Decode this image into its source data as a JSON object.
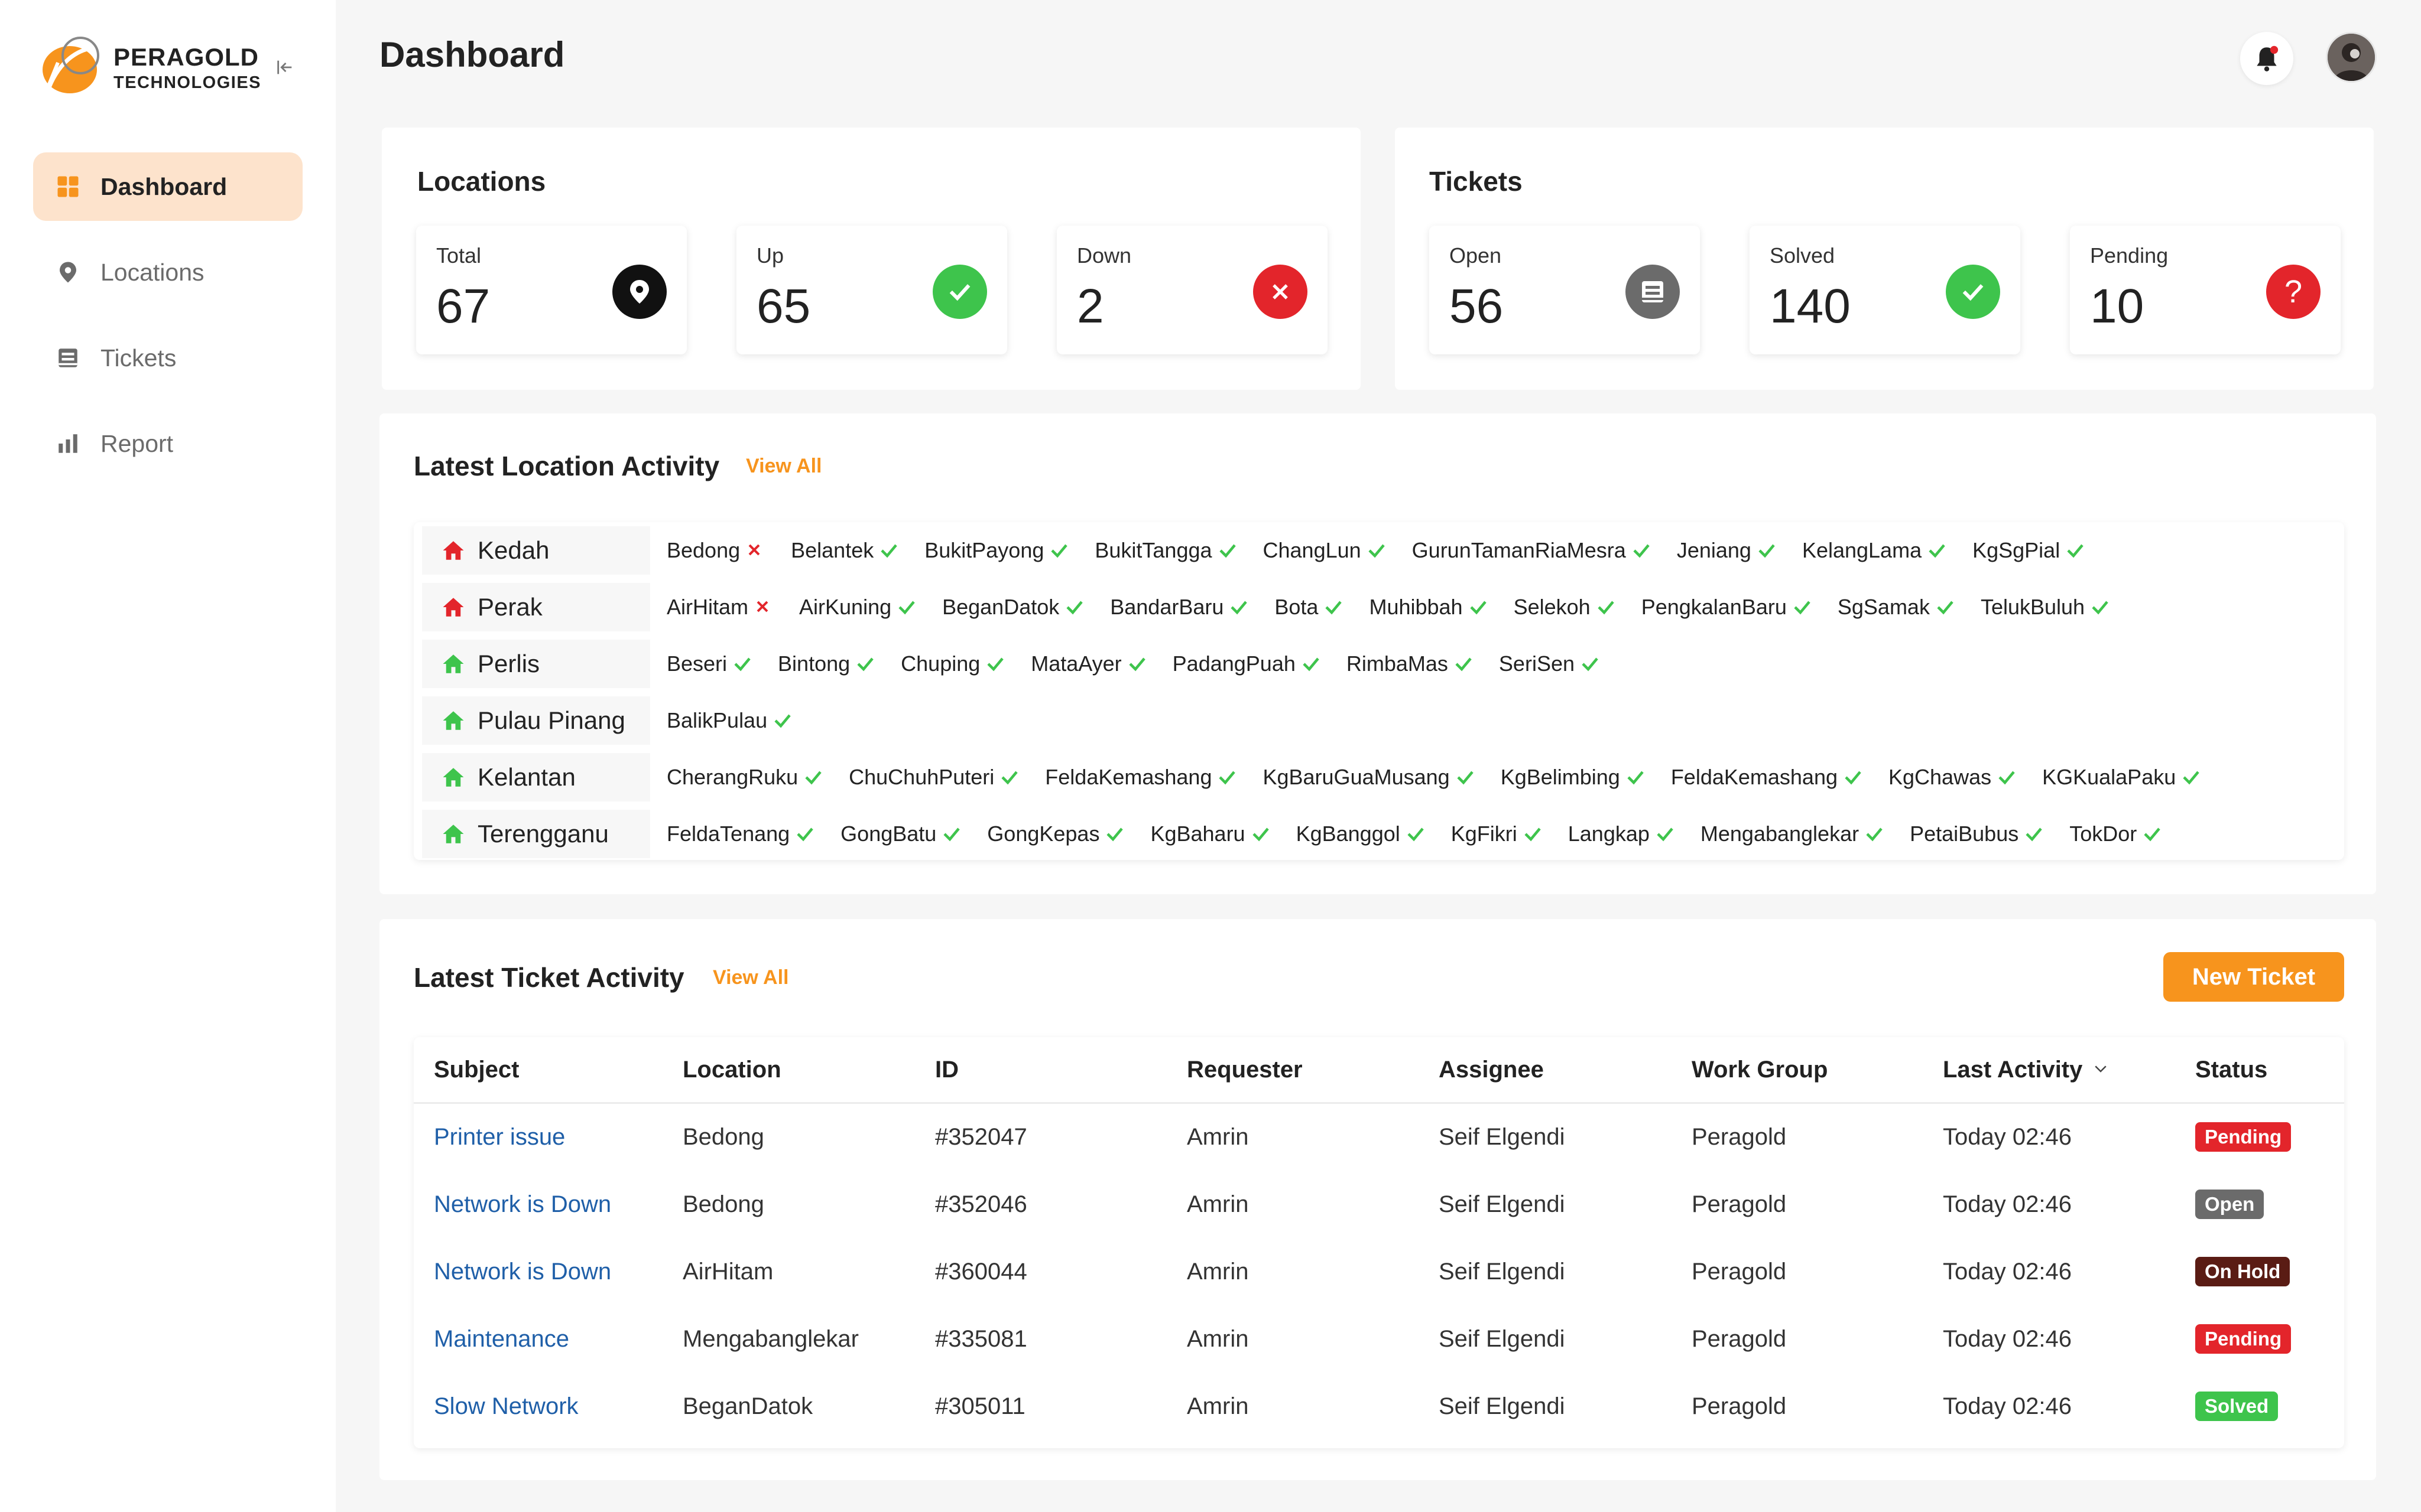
{
  "brand": {
    "name_line1": "PERAGOLD",
    "name_line2": "TECHNOLOGIES"
  },
  "nav": [
    {
      "label": "Dashboard",
      "icon": "grid-icon",
      "active": true
    },
    {
      "label": "Locations",
      "icon": "map-pin-icon",
      "active": false
    },
    {
      "label": "Tickets",
      "icon": "ticket-icon",
      "active": false
    },
    {
      "label": "Report",
      "icon": "bar-chart-icon",
      "active": false
    }
  ],
  "header": {
    "title": "Dashboard"
  },
  "locations": {
    "title": "Locations",
    "total": {
      "label": "Total",
      "value": "67"
    },
    "up": {
      "label": "Up",
      "value": "65"
    },
    "down": {
      "label": "Down",
      "value": "2"
    }
  },
  "tickets": {
    "title": "Tickets",
    "open": {
      "label": "Open",
      "value": "56"
    },
    "solved": {
      "label": "Solved",
      "value": "140"
    },
    "pending": {
      "label": "Pending",
      "value": "10"
    }
  },
  "location_activity": {
    "title": "Latest Location Activity",
    "view_all": "View All",
    "states": [
      {
        "name": "Kedah",
        "status": "down",
        "sites": [
          {
            "name": "Bedong",
            "up": false
          },
          {
            "name": "Belantek",
            "up": true
          },
          {
            "name": "BukitPayong",
            "up": true
          },
          {
            "name": "BukitTangga",
            "up": true
          },
          {
            "name": "ChangLun",
            "up": true
          },
          {
            "name": "GurunTamanRiaMesra",
            "up": true
          },
          {
            "name": "Jeniang",
            "up": true
          },
          {
            "name": "KelangLama",
            "up": true
          },
          {
            "name": "KgSgPial",
            "up": true
          }
        ]
      },
      {
        "name": "Perak",
        "status": "down",
        "sites": [
          {
            "name": "AirHitam",
            "up": false
          },
          {
            "name": "AirKuning",
            "up": true
          },
          {
            "name": "BeganDatok",
            "up": true
          },
          {
            "name": "BandarBaru",
            "up": true
          },
          {
            "name": "Bota",
            "up": true
          },
          {
            "name": "Muhibbah",
            "up": true
          },
          {
            "name": "Selekoh",
            "up": true
          },
          {
            "name": "PengkalanBaru",
            "up": true
          },
          {
            "name": "SgSamak",
            "up": true
          },
          {
            "name": "TelukBuluh",
            "up": true
          }
        ]
      },
      {
        "name": "Perlis",
        "status": "up",
        "sites": [
          {
            "name": "Beseri",
            "up": true
          },
          {
            "name": "Bintong",
            "up": true
          },
          {
            "name": "Chuping",
            "up": true
          },
          {
            "name": "MataAyer",
            "up": true
          },
          {
            "name": "PadangPuah",
            "up": true
          },
          {
            "name": "RimbaMas",
            "up": true
          },
          {
            "name": "SeriSen",
            "up": true
          }
        ]
      },
      {
        "name": "Pulau Pinang",
        "status": "up",
        "sites": [
          {
            "name": "BalikPulau",
            "up": true
          }
        ]
      },
      {
        "name": "Kelantan",
        "status": "up",
        "sites": [
          {
            "name": "CherangRuku",
            "up": true
          },
          {
            "name": "ChuChuhPuteri",
            "up": true
          },
          {
            "name": "FeldaKemashang",
            "up": true
          },
          {
            "name": "KgBaruGuaMusang",
            "up": true
          },
          {
            "name": "KgBelimbing",
            "up": true
          },
          {
            "name": "FeldaKemashang",
            "up": true
          },
          {
            "name": "KgChawas",
            "up": true
          },
          {
            "name": "KGKualaPaku",
            "up": true
          }
        ]
      },
      {
        "name": "Terengganu",
        "status": "up",
        "sites": [
          {
            "name": "FeldaTenang",
            "up": true
          },
          {
            "name": "GongBatu",
            "up": true
          },
          {
            "name": "GongKepas",
            "up": true
          },
          {
            "name": "KgBaharu",
            "up": true
          },
          {
            "name": "KgBanggol",
            "up": true
          },
          {
            "name": "KgFikri",
            "up": true
          },
          {
            "name": "Langkap",
            "up": true
          },
          {
            "name": "Mengabanglekar",
            "up": true
          },
          {
            "name": "PetaiBubus",
            "up": true
          },
          {
            "name": "TokDor",
            "up": true
          }
        ]
      }
    ]
  },
  "ticket_activity": {
    "title": "Latest Ticket Activity",
    "view_all": "View All",
    "new_ticket": "New Ticket",
    "columns": [
      "Subject",
      "Location",
      "ID",
      "Requester",
      "Assignee",
      "Work Group",
      "Last Activity",
      "Status"
    ],
    "rows": [
      {
        "subject": "Printer issue",
        "location": "Bedong",
        "id": "#352047",
        "requester": "Amrin",
        "assignee": "Seif Elgendi",
        "group": "Peragold",
        "last": "Today 02:46",
        "status": "Pending",
        "status_key": "pending"
      },
      {
        "subject": "Network is Down",
        "location": "Bedong",
        "id": "#352046",
        "requester": "Amrin",
        "assignee": "Seif Elgendi",
        "group": "Peragold",
        "last": "Today 02:46",
        "status": "Open",
        "status_key": "open"
      },
      {
        "subject": "Network is Down",
        "location": "AirHitam",
        "id": "#360044",
        "requester": "Amrin",
        "assignee": "Seif Elgendi",
        "group": "Peragold",
        "last": "Today 02:46",
        "status": "On Hold",
        "status_key": "hold"
      },
      {
        "subject": "Maintenance",
        "location": "Mengabanglekar",
        "id": "#335081",
        "requester": "Amrin",
        "assignee": "Seif Elgendi",
        "group": "Peragold",
        "last": "Today 02:46",
        "status": "Pending",
        "status_key": "pending"
      },
      {
        "subject": "Slow Network",
        "location": "BeganDatok",
        "id": "#305011",
        "requester": "Amrin",
        "assignee": "Seif Elgendi",
        "group": "Peragold",
        "last": "Today 02:46",
        "status": "Solved",
        "status_key": "solved"
      }
    ]
  },
  "colors": {
    "accent": "#f7941d",
    "up": "#3ec44c",
    "down": "#e3252b",
    "link": "#1f5fa8"
  }
}
